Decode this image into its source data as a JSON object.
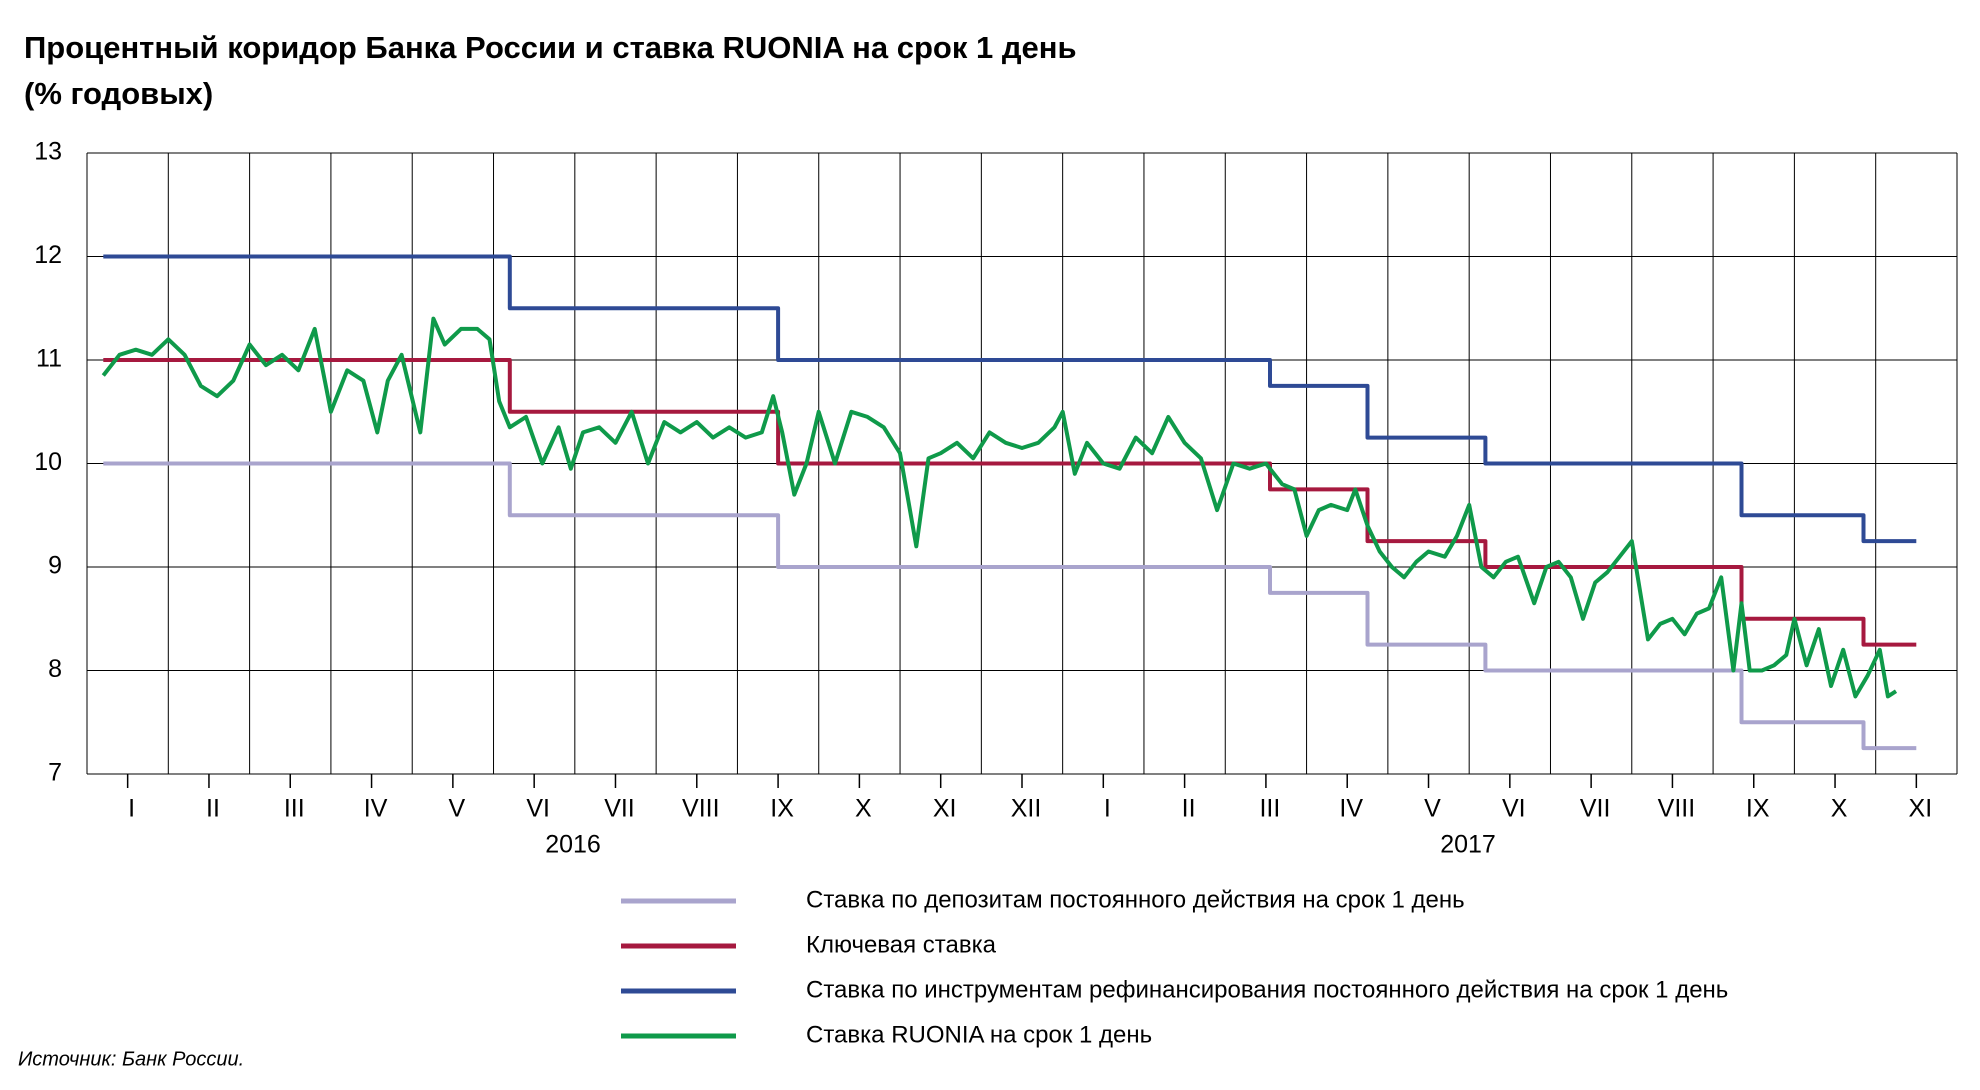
{
  "chart_data": {
    "type": "line",
    "title": "Процентный коридор Банка России и ставка RUONIA на срок 1 день",
    "subtitle": "(% годовых)",
    "source": "Источник: Банк России.",
    "year_labels": [
      "2016",
      "2017"
    ],
    "xlim": [
      0,
      23
    ],
    "xgrid": [
      0,
      1,
      2,
      3,
      4,
      5,
      6,
      7,
      8,
      9,
      10,
      11,
      12,
      13,
      14,
      15,
      16,
      17,
      18,
      19,
      20,
      21,
      22,
      23
    ],
    "xticks": [
      {
        "value": 0.5,
        "label": "I"
      },
      {
        "value": 1.5,
        "label": "II"
      },
      {
        "value": 2.5,
        "label": "III"
      },
      {
        "value": 3.5,
        "label": "IV"
      },
      {
        "value": 4.5,
        "label": "V"
      },
      {
        "value": 5.5,
        "label": "VI"
      },
      {
        "value": 6.5,
        "label": "VII"
      },
      {
        "value": 7.5,
        "label": "VIII"
      },
      {
        "value": 8.5,
        "label": "IX"
      },
      {
        "value": 9.5,
        "label": "X"
      },
      {
        "value": 10.5,
        "label": "XI"
      },
      {
        "value": 11.5,
        "label": "XII"
      },
      {
        "value": 12.5,
        "label": "I"
      },
      {
        "value": 13.5,
        "label": "II"
      },
      {
        "value": 14.5,
        "label": "III"
      },
      {
        "value": 15.5,
        "label": "IV"
      },
      {
        "value": 16.5,
        "label": "V"
      },
      {
        "value": 17.5,
        "label": "VI"
      },
      {
        "value": 18.5,
        "label": "VII"
      },
      {
        "value": 19.5,
        "label": "VIII"
      },
      {
        "value": 20.5,
        "label": "IX"
      },
      {
        "value": 21.5,
        "label": "X"
      },
      {
        "value": 22.5,
        "label": "XI"
      }
    ],
    "ylim": [
      7,
      13
    ],
    "yticks": [
      7,
      8,
      9,
      10,
      11,
      12,
      13
    ],
    "grid": true,
    "series": [
      {
        "name": "Ставка по депозитам постоянного действия на срок 1 день",
        "color": "#a9a4cd",
        "x": [
          0.2,
          5.2,
          5.2,
          8.5,
          8.5,
          14.55,
          14.55,
          15.75,
          15.75,
          17.2,
          17.2,
          20.35,
          20.35,
          21.85,
          21.85,
          22.5
        ],
        "values": [
          10,
          10,
          9.5,
          9.5,
          9,
          9,
          8.75,
          8.75,
          8.25,
          8.25,
          8,
          8,
          7.5,
          7.5,
          7.25,
          7.25
        ]
      },
      {
        "name": "Ключевая ставка",
        "color": "#a6193f",
        "x": [
          0.2,
          5.2,
          5.2,
          8.5,
          8.5,
          14.55,
          14.55,
          15.75,
          15.75,
          17.2,
          17.2,
          20.35,
          20.35,
          21.85,
          21.85,
          22.5
        ],
        "values": [
          11,
          11,
          10.5,
          10.5,
          10,
          10,
          9.75,
          9.75,
          9.25,
          9.25,
          9,
          9,
          8.5,
          8.5,
          8.25,
          8.25
        ]
      },
      {
        "name": "Ставка по инструментам рефинансирования постоянного действия на срок 1 день",
        "color": "#2e4a95",
        "x": [
          0.2,
          5.2,
          5.2,
          8.5,
          8.5,
          14.55,
          14.55,
          15.75,
          15.75,
          17.2,
          17.2,
          20.35,
          20.35,
          21.85,
          21.85,
          22.5
        ],
        "values": [
          12,
          12,
          11.5,
          11.5,
          11,
          11,
          10.75,
          10.75,
          10.25,
          10.25,
          10,
          10,
          9.5,
          9.5,
          9.25,
          9.25
        ]
      },
      {
        "name": "Ставка RUONIA на срок 1 день",
        "color": "#0f9a4a",
        "x": [
          0.2,
          0.4,
          0.6,
          0.8,
          1.0,
          1.2,
          1.4,
          1.6,
          1.8,
          2.0,
          2.2,
          2.4,
          2.6,
          2.8,
          3.0,
          3.2,
          3.4,
          3.57,
          3.7,
          3.87,
          4.1,
          4.26,
          4.4,
          4.6,
          4.8,
          4.95,
          5.07,
          5.2,
          5.4,
          5.6,
          5.8,
          5.95,
          6.1,
          6.3,
          6.5,
          6.7,
          6.9,
          7.1,
          7.3,
          7.5,
          7.7,
          7.9,
          8.1,
          8.3,
          8.44,
          8.55,
          8.7,
          8.85,
          9.0,
          9.2,
          9.4,
          9.6,
          9.8,
          10.0,
          10.2,
          10.35,
          10.5,
          10.7,
          10.9,
          11.1,
          11.3,
          11.5,
          11.7,
          11.9,
          12.0,
          12.15,
          12.3,
          12.5,
          12.7,
          12.9,
          13.1,
          13.3,
          13.5,
          13.7,
          13.9,
          14.1,
          14.3,
          14.5,
          14.7,
          14.85,
          15.0,
          15.15,
          15.3,
          15.5,
          15.6,
          15.75,
          15.9,
          16.05,
          16.2,
          16.35,
          16.5,
          16.7,
          16.85,
          17.0,
          17.15,
          17.3,
          17.45,
          17.6,
          17.8,
          17.95,
          18.1,
          18.25,
          18.4,
          18.55,
          18.7,
          18.85,
          19.0,
          19.2,
          19.35,
          19.5,
          19.65,
          19.8,
          19.95,
          20.1,
          20.25,
          20.35,
          20.45,
          20.6,
          20.75,
          20.9,
          21.0,
          21.15,
          21.3,
          21.45,
          21.6,
          21.75,
          21.9,
          22.05,
          22.15,
          22.25
        ],
        "values": [
          10.85,
          11.05,
          11.1,
          11.05,
          11.2,
          11.05,
          10.75,
          10.65,
          10.8,
          11.15,
          10.95,
          11.05,
          10.9,
          11.3,
          10.5,
          10.9,
          10.8,
          10.3,
          10.8,
          11.05,
          10.3,
          11.4,
          11.15,
          11.3,
          11.3,
          11.2,
          10.6,
          10.35,
          10.45,
          10.0,
          10.35,
          9.95,
          10.3,
          10.35,
          10.2,
          10.5,
          10.0,
          10.4,
          10.3,
          10.4,
          10.25,
          10.35,
          10.25,
          10.3,
          10.65,
          10.3,
          9.7,
          10.0,
          10.5,
          10.0,
          10.5,
          10.45,
          10.35,
          10.1,
          9.2,
          10.05,
          10.1,
          10.2,
          10.05,
          10.3,
          10.2,
          10.15,
          10.2,
          10.35,
          10.5,
          9.9,
          10.2,
          10.0,
          9.95,
          10.25,
          10.1,
          10.45,
          10.2,
          10.05,
          9.55,
          10.0,
          9.95,
          10.0,
          9.8,
          9.75,
          9.3,
          9.55,
          9.6,
          9.55,
          9.75,
          9.4,
          9.15,
          9.0,
          8.9,
          9.05,
          9.15,
          9.1,
          9.3,
          9.6,
          9.0,
          8.9,
          9.05,
          9.1,
          8.65,
          9.0,
          9.05,
          8.9,
          8.5,
          8.85,
          8.95,
          9.1,
          9.25,
          8.3,
          8.45,
          8.5,
          8.35,
          8.55,
          8.6,
          8.9,
          8.0,
          8.65,
          8.0,
          8.0,
          8.05,
          8.15,
          8.5,
          8.05,
          8.4,
          7.85,
          8.2,
          7.75,
          7.95,
          8.2,
          7.75,
          7.8
        ]
      }
    ]
  }
}
